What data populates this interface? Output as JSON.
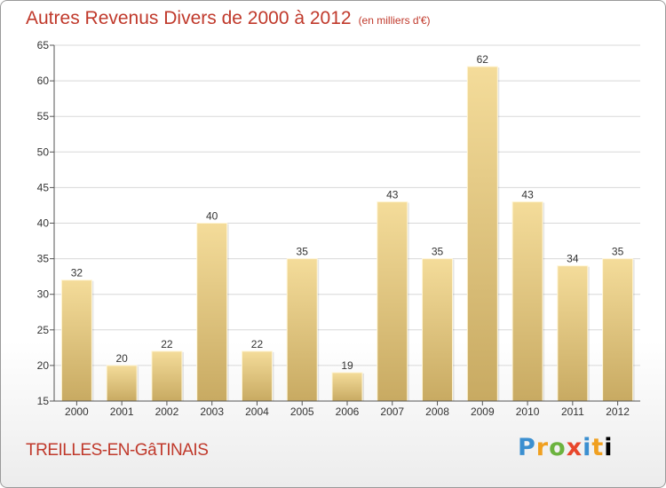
{
  "header": {
    "title": "Autres Revenus Divers de 2000 à 2012",
    "unit": "(en milliers d'€)"
  },
  "footer": {
    "place": "TREILLES-EN-GâTINAIS",
    "logo": [
      "P",
      "r",
      "o",
      "x",
      "i",
      "t",
      "i"
    ]
  },
  "colors": {
    "bar_light": "#f4dc9a",
    "bar_dark": "#c8aa62",
    "grid": "#d8d8d8",
    "title": "#c0392b"
  },
  "chart_data": {
    "type": "bar",
    "title": "Autres Revenus Divers de 2000 à 2012",
    "categories": [
      "2000",
      "2001",
      "2002",
      "2003",
      "2004",
      "2005",
      "2006",
      "2007",
      "2008",
      "2009",
      "2010",
      "2011",
      "2012"
    ],
    "values": [
      32,
      20,
      22,
      40,
      22,
      35,
      19,
      43,
      35,
      62,
      43,
      34,
      35
    ],
    "xlabel": "",
    "ylabel": "",
    "ylim": [
      15,
      65
    ],
    "yticks": [
      15,
      20,
      25,
      30,
      35,
      40,
      45,
      50,
      55,
      60,
      65
    ],
    "grid": true,
    "data_labels": true
  }
}
